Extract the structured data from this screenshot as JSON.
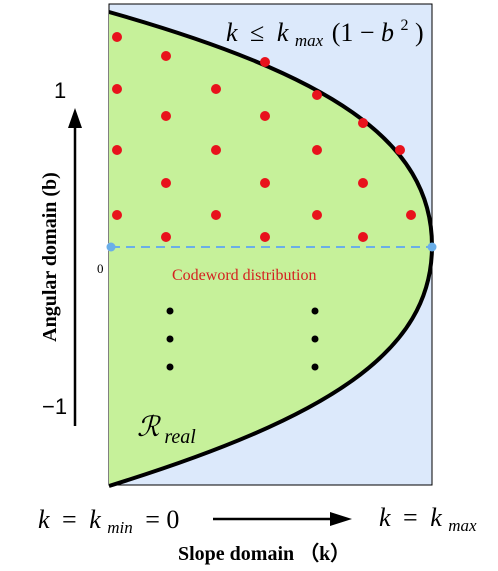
{
  "constraint": {
    "k": "k",
    "leq": "≤",
    "kmax_base": "k",
    "kmax_sub": "max",
    "paren_open": "(1 − ",
    "b": "b",
    "b_exp": "2",
    "paren_close": ")"
  },
  "angular_axis": {
    "label": "Angular domain  (b)",
    "tick_top": "1",
    "tick_zero": "0",
    "tick_bottom": "−1"
  },
  "codeword_label": "Codeword distribution",
  "region_label": {
    "base": "ℛ",
    "sub": "real"
  },
  "slope_axis": {
    "left_k": "k",
    "left_eq": "=",
    "left_kmin_base": "k",
    "left_kmin_sub": "min",
    "left_zero": "= 0",
    "right_k": "k",
    "right_eq": "=",
    "right_kmax_base": "k",
    "right_kmax_sub": "max",
    "label": "Slope domain （k）"
  },
  "colors": {
    "background_region": "#dce9fb",
    "feasible_region": "#c6f19a",
    "boundary": "#000000",
    "codeword": "#e8121c",
    "dashed_line": "#6aaee8",
    "codeword_text": "#d42020",
    "ellipsis_dots": "#000000"
  }
}
